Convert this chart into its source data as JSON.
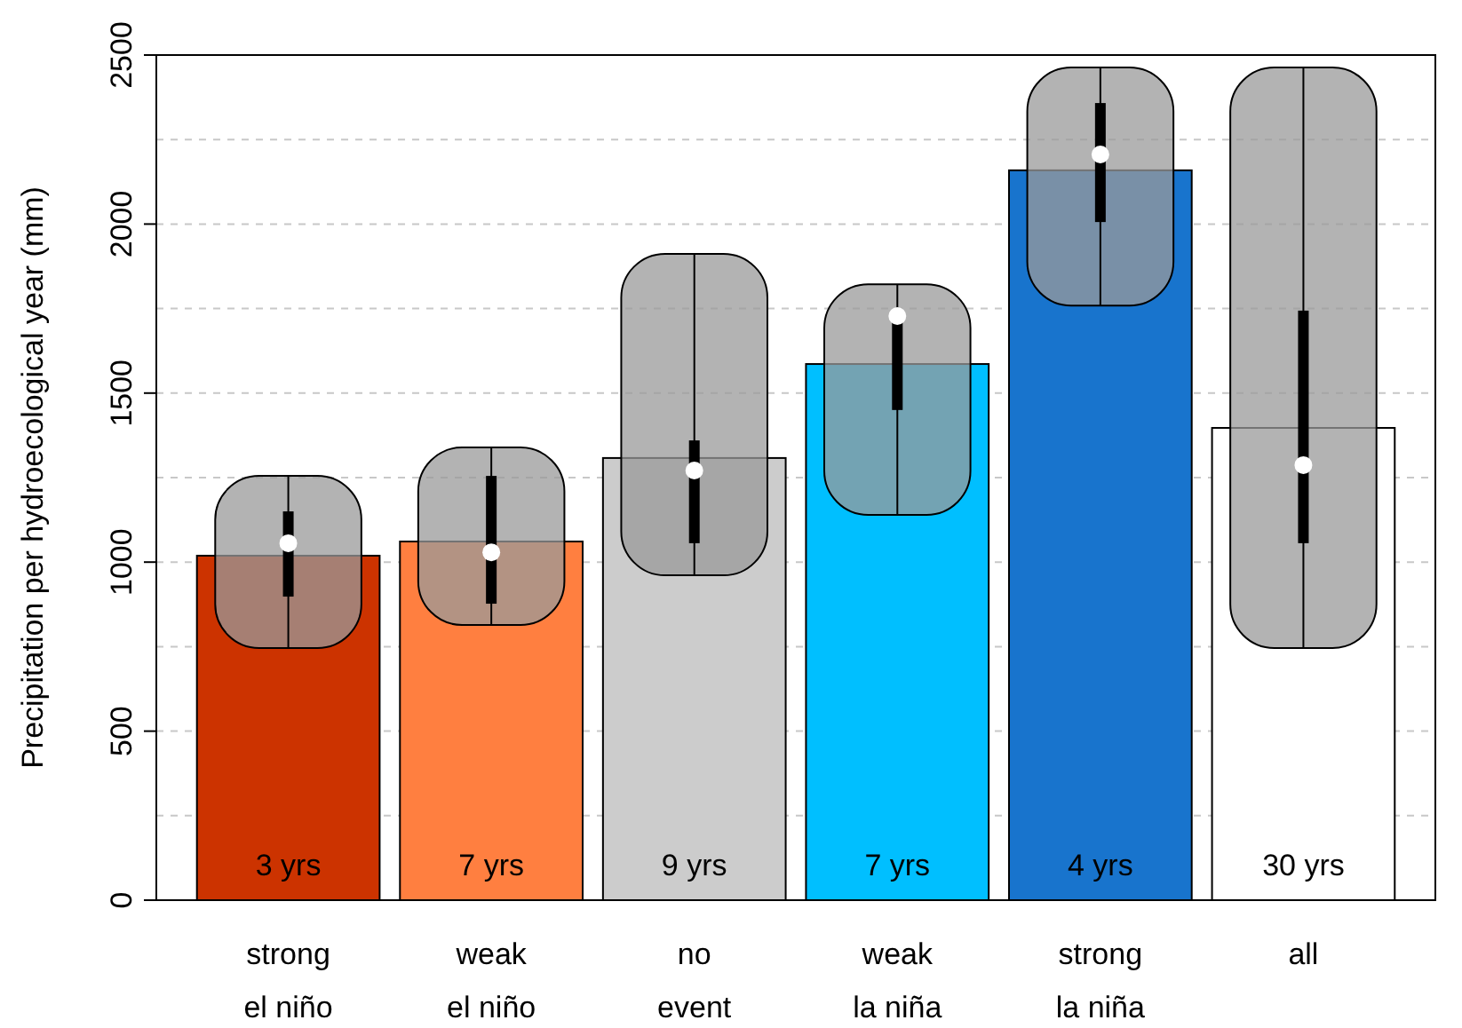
{
  "chart_data": {
    "type": "bar",
    "ylabel": "Precipitation per hydroecological year (mm)",
    "categories": [
      "strong\nel niño",
      "weak\nel niño",
      "no\nevent",
      "weak\nla niña",
      "strong\nla niña",
      "all"
    ],
    "series": [
      {
        "values": [
          1019,
          1061,
          1308,
          1586,
          2159,
          1397
        ],
        "colors": [
          "#cc3300",
          "#ff7f40",
          "#cccccc",
          "#00bfff",
          "#1874cd",
          "#ffffff"
        ]
      },
      {
        "type": "box",
        "color": "#000000",
        "boxes": [
          {
            "low": 746,
            "q1": 898,
            "median": 1056,
            "q3": 1150,
            "high": 1255
          },
          {
            "low": 814,
            "q1": 877,
            "median": 1029,
            "q3": 1255,
            "high": 1339
          },
          {
            "low": 961,
            "q1": 1056,
            "median": 1271,
            "q3": 1360,
            "high": 1912
          },
          {
            "low": 1140,
            "q1": 1450,
            "median": 1728,
            "q3": 1740,
            "high": 1822
          },
          {
            "low": 1759,
            "q1": 2006,
            "median": 2206,
            "q3": 2358,
            "high": 2463
          },
          {
            "low": 746,
            "q1": 1056,
            "median": 1287,
            "q3": 1744,
            "high": 2463
          }
        ]
      }
    ],
    "annotations": [
      "3 yrs",
      "7 yrs",
      "9 yrs",
      "7 yrs",
      "4 yrs",
      "30 yrs"
    ],
    "ylim": [
      0,
      2500
    ],
    "yticks": [
      0,
      {
        "value": 250,
        "label": null
      },
      500,
      {
        "value": 750,
        "label": null
      },
      1000,
      {
        "value": 1250,
        "label": null
      },
      1500,
      {
        "value": 1750,
        "label": null
      },
      2000,
      {
        "value": 2250,
        "label": null
      },
      2500
    ],
    "grid": "y"
  }
}
